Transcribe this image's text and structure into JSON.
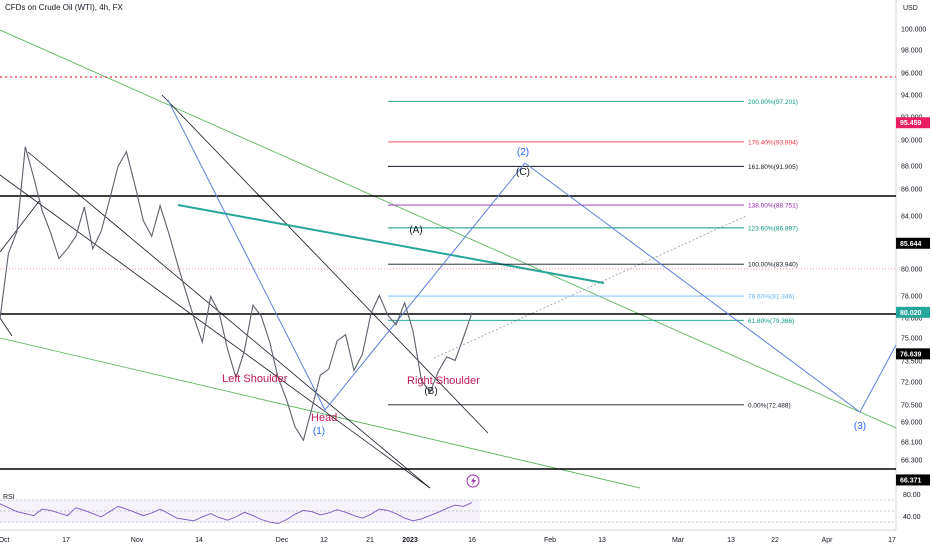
{
  "header": {
    "title": "CFDs on Crude Oil (WTI), 4h, FX"
  },
  "chart_data": {
    "type": "line",
    "title": "CFDs on Crude Oil (WTI), 4h, FX",
    "currency": "USD",
    "ylim": [
      65.2,
      101.4
    ],
    "y_ticks": [
      "100.000",
      "98.000",
      "96.000",
      "94.000",
      "92.000",
      "90.000",
      "88.000",
      "86.000",
      "84.000",
      "82.000",
      "80.000",
      "78.000",
      "76.000",
      "75.000",
      "73.500",
      "72.000",
      "70.500",
      "69.000",
      "68.100",
      "66.300",
      "65.700"
    ],
    "x_ticks": [
      "Oct",
      "17",
      "Nov",
      "14",
      "Dec",
      "12",
      "21",
      "2023",
      "16",
      "Feb",
      "13",
      "Mar",
      "13",
      "22",
      "Apr",
      "17"
    ],
    "price_series": {
      "name": "price",
      "values": [
        79.5,
        84.8,
        86.6,
        93.5,
        91.0,
        88.3,
        86.5,
        84.4,
        85.2,
        86.2,
        88.6,
        85.2,
        86.6,
        89.2,
        91.9,
        93.1,
        90.4,
        87.5,
        86.2,
        88.7,
        86.5,
        84.1,
        81.8,
        79.6,
        77.6,
        81.3,
        80.0,
        77.0,
        74.7,
        76.9,
        80.6,
        79.7,
        77.6,
        74.7,
        72.9,
        70.7,
        69.6,
        72.2,
        74.9,
        75.4,
        77.7,
        78.2,
        75.3,
        76.6,
        79.9,
        81.4,
        79.8,
        79.0,
        80.8,
        78.5,
        74.5,
        73.5,
        75.2,
        76.4,
        76.1,
        78.0,
        80.0
      ]
    },
    "price_tags": [
      {
        "value": "95.459",
        "color": "#e91e63"
      },
      {
        "value": "85.644",
        "color": "#000000"
      },
      {
        "value": "80.020",
        "color": "#26a69a"
      },
      {
        "value": "76.639",
        "color": "#000000"
      },
      {
        "value": "66.371",
        "color": "#000000"
      }
    ],
    "fib_levels": [
      {
        "label": "200.00%(97.201)",
        "value": 97.201,
        "color": "#089981"
      },
      {
        "label": "176.40%(93.894)",
        "value": 93.894,
        "color": "#f23645"
      },
      {
        "label": "161.80%(91.905)",
        "value": 91.905,
        "color": "#131722"
      },
      {
        "label": "138.00%(88.751)",
        "value": 88.751,
        "color": "#9c27b0"
      },
      {
        "label": "123.60%(86.897)",
        "value": 86.897,
        "color": "#089981"
      },
      {
        "label": "100.00%(83.940)",
        "value": 83.94,
        "color": "#131722"
      },
      {
        "label": "78.60%(81.346)",
        "value": 81.346,
        "color": "#64b5f6"
      },
      {
        "label": "61.80%(79.366)",
        "value": 79.366,
        "color": "#089981"
      },
      {
        "label": "0.00%(72.488)",
        "value": 72.488,
        "color": "#131722"
      }
    ],
    "annotations": {
      "waves": [
        "(1)",
        "(2)",
        "(3)"
      ],
      "abc": [
        "(A)",
        "(B)",
        "(C)"
      ],
      "pattern": [
        "Left Shoulder",
        "Head",
        "Right Shoulder"
      ]
    },
    "rsi": {
      "label": "RSI",
      "ylim": [
        30,
        85
      ],
      "ticks": [
        "80.00",
        "40.00"
      ],
      "values": [
        70,
        64,
        58,
        55,
        52,
        62,
        60,
        56,
        52,
        64,
        60,
        55,
        50,
        58,
        66,
        62,
        57,
        52,
        56,
        62,
        55,
        48,
        46,
        44,
        50,
        55,
        49,
        45,
        50,
        57,
        52,
        46,
        42,
        40,
        46,
        54,
        60,
        58,
        53,
        56,
        61,
        57,
        52,
        48,
        54,
        62,
        60,
        55,
        48,
        44,
        47,
        52,
        57,
        63,
        68,
        66,
        72
      ]
    }
  }
}
